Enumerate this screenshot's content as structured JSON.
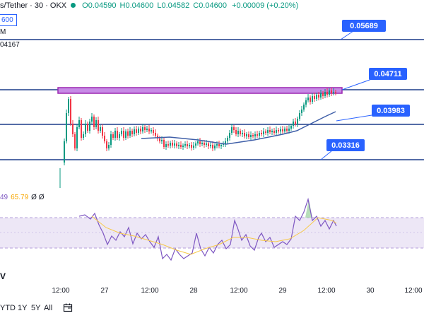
{
  "header": {
    "symbol": "s/Tether · 30 · OKX",
    "open": "O0.04590",
    "high": "H0.04600",
    "low": "L0.04582",
    "close": "C0.04600",
    "change": "+0.00009 (+0.20%)"
  },
  "price_box": "600",
  "left_labels": {
    "ma_top": "M",
    "ma_value": "04167"
  },
  "rsi_legend": {
    "rsi": "49",
    "rsi_ma": "65.79",
    "extra": "Ø  Ø"
  },
  "volume_label": "V",
  "level_tags": [
    "0.05689",
    "0.04711",
    "0.03983",
    "0.03316"
  ],
  "x_axis": [
    "12:00",
    "27",
    "12:00",
    "28",
    "12:00",
    "29",
    "12:00",
    "30",
    "12:00"
  ],
  "range_buttons": [
    "YTD",
    "1Y",
    "5Y",
    "All"
  ],
  "icons": {
    "calendar": "calendar-icon"
  },
  "colors": {
    "level_line": "#1c3b8a",
    "tag_bg": "#2962ff",
    "zone": "#c78be6",
    "zone_border": "#9c27b0",
    "up": "#089981",
    "down": "#f23645",
    "ma_line": "#3f5fa8",
    "rsi_line": "#7e57c2",
    "rsi_ma": "#f7c948",
    "rsi_band": "#ede7f6"
  }
}
